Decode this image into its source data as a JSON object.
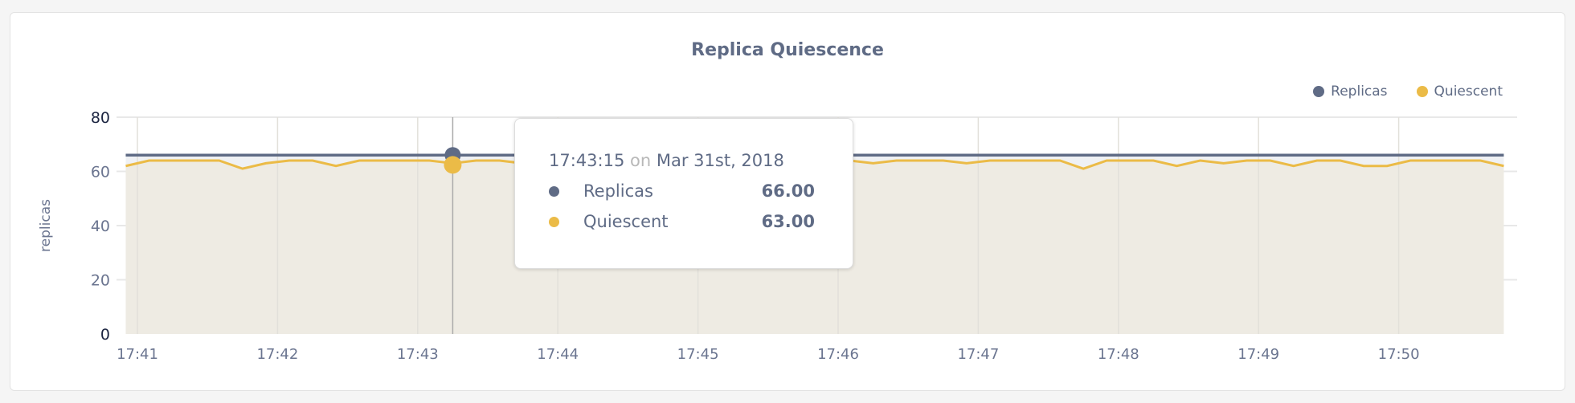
{
  "chart_data": {
    "type": "area",
    "title": "Replica Quiescence",
    "ylabel": "replicas",
    "xlabel": "",
    "ylim": [
      0,
      80
    ],
    "yticks": [
      "0",
      "20",
      "40",
      "60",
      "80"
    ],
    "xticks": [
      "17:41",
      "17:42",
      "17:43",
      "17:44",
      "17:45",
      "17:46",
      "17:47",
      "17:48",
      "17:49",
      "17:50"
    ],
    "x_start": "17:40:55",
    "x_interval_seconds": 10,
    "grid": true,
    "legend_position": "top-right",
    "series": [
      {
        "name": "Replicas",
        "color": "#5f6b85",
        "values": [
          66,
          66,
          66,
          66,
          66,
          66,
          66,
          66,
          66,
          66,
          66,
          66,
          66,
          66,
          66,
          66,
          66,
          66,
          66,
          66,
          66,
          66,
          66,
          66,
          66,
          66,
          66,
          66,
          66,
          66,
          66,
          66,
          66,
          66,
          66,
          66,
          66,
          66,
          66,
          66,
          66,
          66,
          66,
          66,
          66,
          66,
          66,
          66,
          66,
          66,
          66,
          66,
          66,
          66,
          66,
          66,
          66,
          66,
          66,
          66
        ]
      },
      {
        "name": "Quiescent",
        "color": "#ebbb47",
        "values": [
          62,
          64,
          64,
          64,
          64,
          61,
          63,
          64,
          64,
          62,
          64,
          64,
          64,
          64,
          63,
          64,
          64,
          63,
          64,
          64,
          64,
          63,
          64,
          64,
          64,
          64,
          63,
          64,
          64,
          64,
          64,
          64,
          63,
          64,
          64,
          64,
          63,
          64,
          64,
          64,
          64,
          61,
          64,
          64,
          64,
          62,
          64,
          63,
          64,
          64,
          62,
          64,
          64,
          62,
          62,
          64,
          64,
          64,
          64,
          62
        ]
      }
    ],
    "hover_index": 14
  },
  "tooltip": {
    "time": "17:43:15",
    "on": "on",
    "date": "Mar 31st, 2018",
    "rows": [
      {
        "label": "Replicas",
        "value": "66.00",
        "color": "#5f6b85"
      },
      {
        "label": "Quiescent",
        "value": "63.00",
        "color": "#ebbb47"
      }
    ]
  }
}
